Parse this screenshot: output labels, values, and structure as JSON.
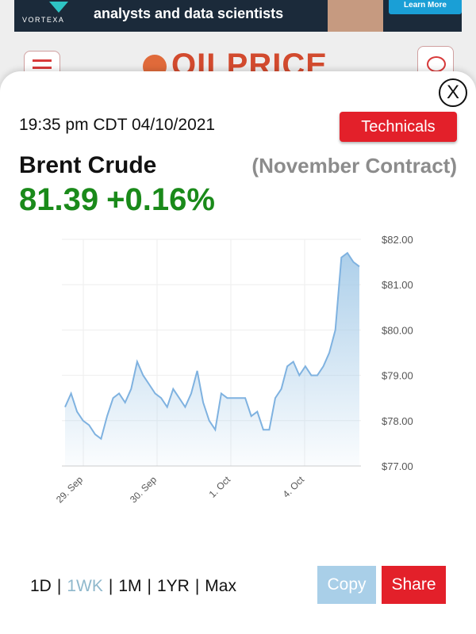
{
  "ad": {
    "brand": "VORTEXA",
    "headline": "analysts and data scientists",
    "cta": "Learn More"
  },
  "site": {
    "logo_text": "OILPRICE"
  },
  "modal": {
    "timestamp": "19:35 pm CDT 04/10/2021",
    "technicals_label": "Technicals",
    "close_label": "X",
    "instrument": "Brent Crude",
    "contract": "(November Contract)",
    "price": "81.39",
    "change": "+0.16%",
    "price_color": "#1a8a1a"
  },
  "chart_data": {
    "type": "area",
    "y_ticks": [
      "$82.00",
      "$81.00",
      "$80.00",
      "$79.00",
      "$78.00",
      "$77.00"
    ],
    "x_ticks": [
      "29. Sep",
      "30. Sep",
      "1. Oct",
      "4. Oct"
    ],
    "ylim": [
      77,
      82
    ],
    "series": [
      {
        "values": [
          78.3,
          78.6,
          78.2,
          78.0,
          77.9,
          77.7,
          77.6,
          78.1,
          78.5,
          78.6,
          78.4,
          78.7,
          79.3,
          79.0,
          78.8,
          78.6,
          78.5,
          78.3,
          78.7,
          78.5,
          78.3,
          78.6,
          79.1,
          78.4,
          78.0,
          77.8,
          78.6,
          78.5,
          78.5,
          78.5,
          78.5,
          78.1,
          78.2,
          77.8,
          77.8,
          78.5,
          78.7,
          79.2,
          79.3,
          79.0,
          79.2,
          79.0,
          79.0,
          79.2,
          79.5,
          80.0,
          81.6,
          81.7,
          81.5,
          81.4
        ]
      }
    ],
    "line_color": "#7fb2e0",
    "fill_color": "#a9cde9",
    "grid": true
  },
  "range_options": [
    {
      "label": "1D",
      "active": false
    },
    {
      "label": "1WK",
      "active": true
    },
    {
      "label": "1M",
      "active": false
    },
    {
      "label": "1YR",
      "active": false
    },
    {
      "label": "Max",
      "active": false
    }
  ],
  "actions": {
    "copy_label": "Copy",
    "share_label": "Share"
  }
}
